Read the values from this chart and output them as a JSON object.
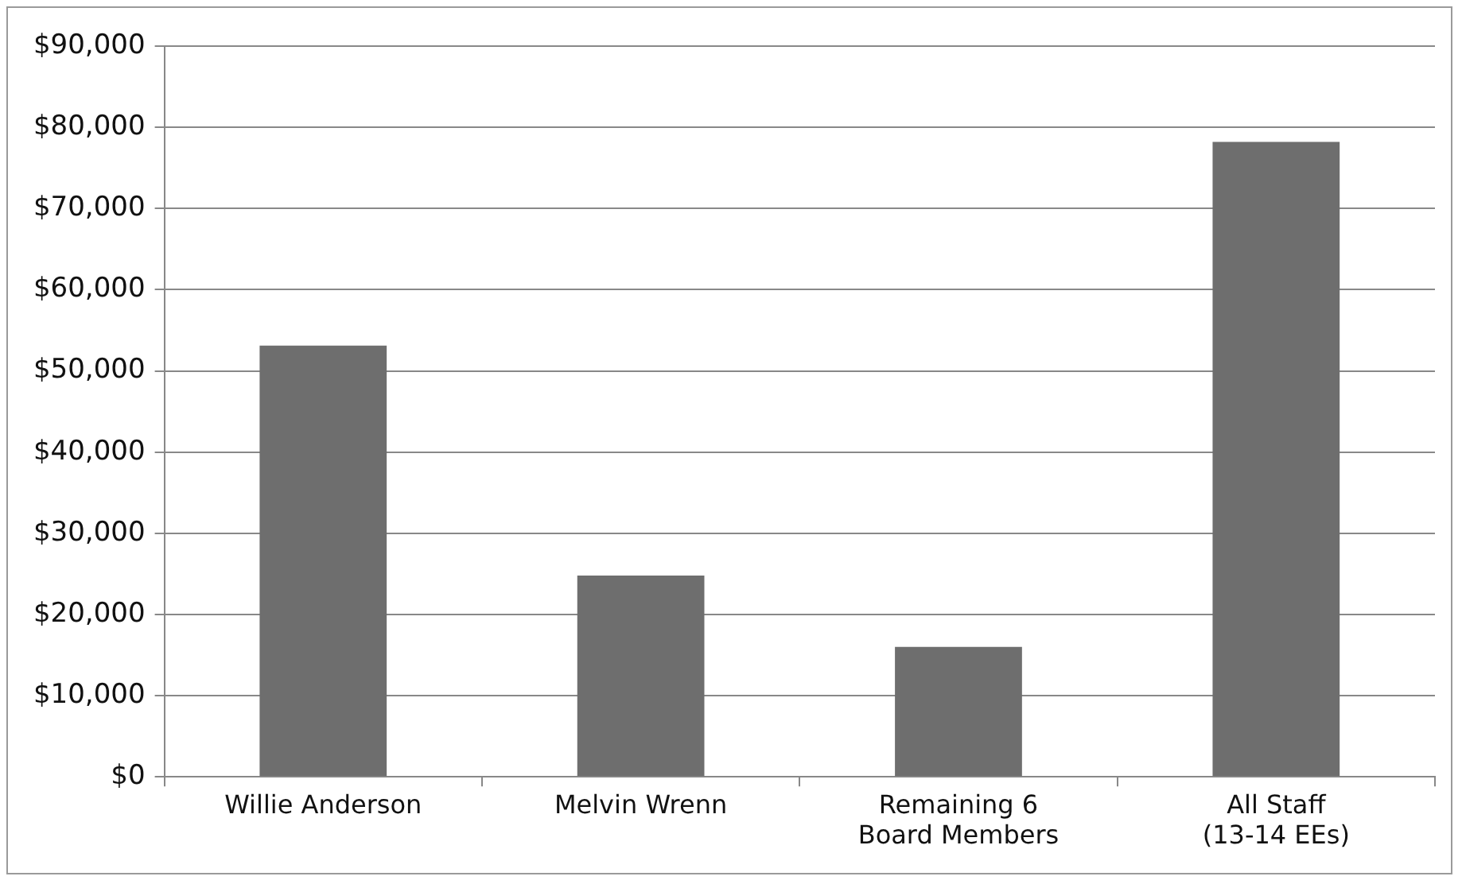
{
  "chart_data": {
    "type": "bar",
    "categories": [
      "Willie Anderson",
      "Melvin Wrenn",
      "Remaining 6\nBoard Members",
      "All Staff\n(13-14 EEs)"
    ],
    "values": [
      53100,
      24800,
      16000,
      78200
    ],
    "color": "#6e6e6e",
    "ylim": [
      0,
      90000
    ],
    "yticks": [
      {
        "value": 0,
        "label": "$0"
      },
      {
        "value": 10000,
        "label": "$10,000"
      },
      {
        "value": 20000,
        "label": "$20,000"
      },
      {
        "value": 30000,
        "label": "$30,000"
      },
      {
        "value": 40000,
        "label": "$40,000"
      },
      {
        "value": 50000,
        "label": "$50,000"
      },
      {
        "value": 60000,
        "label": "$60,000"
      },
      {
        "value": 70000,
        "label": "$70,000"
      },
      {
        "value": 80000,
        "label": "$80,000"
      },
      {
        "value": 90000,
        "label": "$90,000"
      }
    ],
    "grid": "y",
    "legend": false
  }
}
